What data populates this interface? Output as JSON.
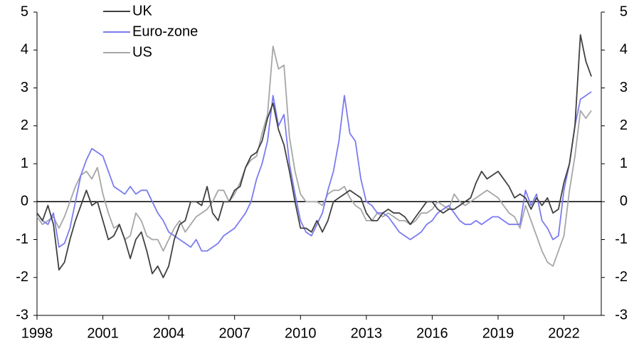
{
  "chart_data": {
    "type": "line",
    "x": [
      1998,
      1998.25,
      1998.5,
      1998.75,
      1999,
      1999.25,
      1999.5,
      1999.75,
      2000,
      2000.25,
      2000.5,
      2000.75,
      2001,
      2001.25,
      2001.5,
      2001.75,
      2002,
      2002.25,
      2002.5,
      2002.75,
      2003,
      2003.25,
      2003.5,
      2003.75,
      2004,
      2004.25,
      2004.5,
      2004.75,
      2005,
      2005.25,
      2005.5,
      2005.75,
      2006,
      2006.25,
      2006.5,
      2006.75,
      2007,
      2007.25,
      2007.5,
      2007.75,
      2008,
      2008.25,
      2008.5,
      2008.75,
      2009,
      2009.25,
      2009.5,
      2009.75,
      2010,
      2010.25,
      2010.5,
      2010.75,
      2011,
      2011.25,
      2011.5,
      2011.75,
      2012,
      2012.25,
      2012.5,
      2012.75,
      2013,
      2013.25,
      2013.5,
      2013.75,
      2014,
      2014.25,
      2014.5,
      2014.75,
      2015,
      2015.25,
      2015.5,
      2015.75,
      2016,
      2016.25,
      2016.5,
      2016.75,
      2017,
      2017.25,
      2017.5,
      2017.75,
      2018,
      2018.25,
      2018.5,
      2018.75,
      2019,
      2019.25,
      2019.5,
      2019.75,
      2020,
      2020.25,
      2020.5,
      2020.75,
      2021,
      2021.25,
      2021.5,
      2021.75,
      2022,
      2022.25,
      2022.5,
      2022.75,
      2023,
      2023.25
    ],
    "series": [
      {
        "name": "UK",
        "color": "#404040",
        "values": [
          -0.3,
          -0.5,
          -0.1,
          -0.6,
          -1.8,
          -1.6,
          -1.0,
          -0.5,
          -0.1,
          0.3,
          -0.1,
          0.0,
          -0.5,
          -1.0,
          -0.9,
          -0.6,
          -1.0,
          -1.5,
          -1.0,
          -0.8,
          -1.3,
          -1.9,
          -1.7,
          -2.0,
          -1.7,
          -1.0,
          -0.6,
          -0.5,
          0.0,
          0.0,
          -0.1,
          0.4,
          -0.3,
          -0.5,
          0.0,
          0.0,
          0.3,
          0.4,
          0.9,
          1.2,
          1.3,
          1.6,
          2.2,
          2.6,
          1.9,
          1.5,
          0.8,
          0.0,
          -0.7,
          -0.7,
          -0.8,
          -0.5,
          -0.8,
          -0.5,
          0.0,
          0.1,
          0.2,
          0.3,
          0.2,
          0.1,
          -0.3,
          -0.5,
          -0.5,
          -0.3,
          -0.2,
          -0.3,
          -0.3,
          -0.4,
          -0.6,
          -0.4,
          -0.2,
          0.0,
          0.0,
          -0.2,
          -0.3,
          -0.2,
          -0.2,
          -0.1,
          0.0,
          0.1,
          0.5,
          0.8,
          0.6,
          0.7,
          0.8,
          0.6,
          0.4,
          0.1,
          0.2,
          0.1,
          -0.2,
          0.1,
          -0.1,
          0.1,
          -0.3,
          -0.2,
          0.5,
          1.0,
          2.0,
          4.4,
          3.7,
          3.3
        ]
      },
      {
        "name": "Euro-zone",
        "color": "#7b7bf0",
        "values": [
          -0.3,
          -0.5,
          -0.6,
          -0.3,
          -1.2,
          -1.1,
          -0.7,
          0.0,
          0.7,
          1.1,
          1.4,
          1.3,
          1.2,
          0.8,
          0.4,
          0.3,
          0.2,
          0.4,
          0.2,
          0.3,
          0.3,
          0.0,
          -0.3,
          -0.5,
          -0.8,
          -0.9,
          -1.0,
          -1.1,
          -1.2,
          -1.0,
          -1.3,
          -1.3,
          -1.2,
          -1.1,
          -0.9,
          -0.8,
          -0.7,
          -0.5,
          -0.3,
          0.0,
          0.6,
          1.0,
          1.6,
          2.8,
          2.0,
          2.3,
          1.0,
          0.2,
          -0.5,
          -0.8,
          -0.9,
          -0.6,
          -0.3,
          0.3,
          0.8,
          1.6,
          2.8,
          1.8,
          1.6,
          0.6,
          0.0,
          -0.1,
          -0.3,
          -0.3,
          -0.4,
          -0.6,
          -0.8,
          -0.9,
          -1.0,
          -0.9,
          -0.8,
          -0.6,
          -0.5,
          -0.3,
          -0.2,
          -0.1,
          -0.3,
          -0.5,
          -0.6,
          -0.6,
          -0.5,
          -0.6,
          -0.5,
          -0.4,
          -0.4,
          -0.5,
          -0.6,
          -0.6,
          -0.6,
          0.3,
          -0.1,
          0.2,
          -0.5,
          -0.7,
          -1.0,
          -0.9,
          0.3,
          1.0,
          2.0,
          2.7,
          2.8,
          2.9
        ]
      },
      {
        "name": "US",
        "color": "#a6a6a6",
        "values": [
          -0.4,
          -0.6,
          -0.5,
          -0.4,
          -0.7,
          -0.4,
          0.0,
          0.4,
          0.7,
          0.8,
          0.6,
          0.9,
          0.2,
          -0.3,
          -0.7,
          -0.6,
          -1.0,
          -0.9,
          -0.3,
          -0.5,
          -0.9,
          -1.0,
          -1.0,
          -1.3,
          -1.0,
          -0.7,
          -0.5,
          -0.8,
          -0.6,
          -0.4,
          -0.3,
          -0.2,
          0.0,
          0.3,
          0.3,
          0.0,
          0.2,
          0.5,
          0.9,
          1.1,
          1.2,
          1.8,
          2.3,
          4.1,
          3.5,
          3.6,
          1.7,
          0.8,
          0.2,
          0.0,
          0.0,
          0.0,
          -0.1,
          0.2,
          0.3,
          0.3,
          0.4,
          0.1,
          -0.1,
          -0.2,
          -0.5,
          -0.5,
          -0.3,
          -0.4,
          -0.3,
          -0.4,
          -0.5,
          -0.5,
          -0.6,
          -0.5,
          -0.3,
          -0.3,
          -0.2,
          0.0,
          -0.1,
          -0.2,
          0.2,
          0.0,
          -0.1,
          0.0,
          0.1,
          0.2,
          0.3,
          0.2,
          0.1,
          -0.1,
          -0.3,
          -0.4,
          -0.7,
          -0.1,
          -0.5,
          -0.9,
          -1.3,
          -1.6,
          -1.7,
          -1.3,
          -0.9,
          0.3,
          1.2,
          2.4,
          2.2,
          2.4
        ]
      }
    ],
    "xlim": [
      1998,
      2023.7
    ],
    "xticks": [
      1998,
      2001,
      2004,
      2007,
      2010,
      2013,
      2016,
      2019,
      2022
    ],
    "ylim": [
      -3,
      5
    ],
    "yticks": [
      -3,
      -2,
      -1,
      0,
      1,
      2,
      3,
      4,
      5
    ],
    "y2lim": [
      -3,
      5
    ],
    "y2ticks": [
      -3,
      -2,
      -1,
      0,
      1,
      2,
      3,
      4,
      5
    ],
    "legend": "upper-left"
  }
}
